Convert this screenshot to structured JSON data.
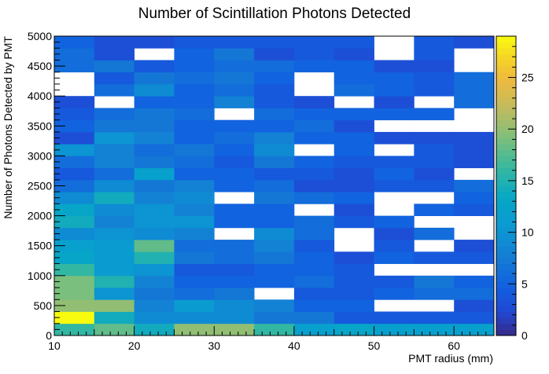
{
  "chart_data": {
    "type": "heatmap",
    "title": "Number of Scintillation Photons Detected",
    "xlabel": "PMT radius (mm)",
    "ylabel": "Number of Photons Detected by PMT",
    "xlim": [
      10,
      65
    ],
    "ylim": [
      0,
      5000
    ],
    "x_bin_edges": [
      10,
      15,
      20,
      25,
      30,
      35,
      40,
      45,
      50,
      55,
      60,
      65
    ],
    "y_bin_edges": [
      0,
      200,
      400,
      600,
      800,
      1000,
      1200,
      1400,
      1600,
      1800,
      2000,
      2200,
      2400,
      2600,
      2800,
      3000,
      3200,
      3400,
      3600,
      3800,
      4000,
      4200,
      4400,
      4600,
      4800,
      5000
    ],
    "x_ticks": [
      "10",
      "20",
      "30",
      "40",
      "50",
      "60"
    ],
    "y_ticks": [
      "0",
      "500",
      "1000",
      "1500",
      "2000",
      "2500",
      "3000",
      "3500",
      "4000",
      "4500",
      "5000"
    ],
    "colorbar": {
      "min": 0,
      "max": 29,
      "ticks": [
        "0",
        "5",
        "10",
        "15",
        "20",
        "25"
      ]
    },
    "grid": false,
    "counts_note_rows_bottom_to_top": true,
    "counts": [
      [
        16,
        18,
        14,
        20,
        20,
        16,
        12,
        13,
        12,
        12,
        12
      ],
      [
        29,
        14,
        9,
        9,
        9,
        7,
        7,
        4,
        4,
        4,
        4
      ],
      [
        20,
        20,
        8,
        11,
        9,
        8,
        5,
        5,
        0,
        0,
        3
      ],
      [
        19,
        10,
        7,
        6,
        7,
        0,
        4,
        4,
        5,
        6,
        6
      ],
      [
        19,
        15,
        8,
        5,
        5,
        5,
        6,
        4,
        4,
        7,
        5
      ],
      [
        16,
        11,
        10,
        4,
        4,
        5,
        5,
        4,
        0,
        0,
        0
      ],
      [
        13,
        11,
        15,
        7,
        6,
        7,
        5,
        3,
        5,
        4,
        4
      ],
      [
        12,
        11,
        18,
        6,
        6,
        8,
        4,
        0,
        4,
        0,
        3
      ],
      [
        9,
        10,
        9,
        8,
        0,
        9,
        6,
        0,
        3,
        6,
        0
      ],
      [
        14,
        8,
        10,
        10,
        5,
        5,
        6,
        4,
        5,
        0,
        0
      ],
      [
        13,
        9,
        10,
        8,
        5,
        5,
        0,
        3,
        0,
        5,
        4
      ],
      [
        9,
        14,
        8,
        9,
        0,
        7,
        6,
        5,
        0,
        0,
        5
      ],
      [
        6,
        9,
        7,
        8,
        5,
        6,
        3,
        3,
        4,
        4,
        6
      ],
      [
        4,
        6,
        12,
        5,
        5,
        4,
        4,
        3,
        5,
        3,
        0
      ],
      [
        6,
        8,
        7,
        6,
        4,
        7,
        5,
        4,
        4,
        4,
        3
      ],
      [
        10,
        8,
        6,
        7,
        5,
        9,
        0,
        5,
        0,
        4,
        3
      ],
      [
        3,
        10,
        8,
        5,
        6,
        8,
        5,
        5,
        3,
        3,
        3
      ],
      [
        5,
        7,
        7,
        5,
        5,
        5,
        6,
        3,
        0,
        0,
        0
      ],
      [
        4,
        6,
        7,
        6,
        0,
        6,
        5,
        5,
        5,
        5,
        0
      ],
      [
        3,
        0,
        5,
        5,
        8,
        4,
        3,
        0,
        3,
        0,
        6
      ],
      [
        0,
        6,
        9,
        5,
        6,
        4,
        0,
        6,
        5,
        4,
        6
      ],
      [
        0,
        4,
        7,
        6,
        7,
        5,
        0,
        5,
        5,
        4,
        6
      ],
      [
        6,
        7,
        4,
        5,
        6,
        6,
        5,
        5,
        3,
        3,
        0
      ],
      [
        6,
        3,
        0,
        5,
        7,
        3,
        4,
        3,
        0,
        4,
        0
      ],
      [
        5,
        3,
        3,
        4,
        4,
        4,
        4,
        4,
        0,
        4,
        3
      ]
    ]
  }
}
